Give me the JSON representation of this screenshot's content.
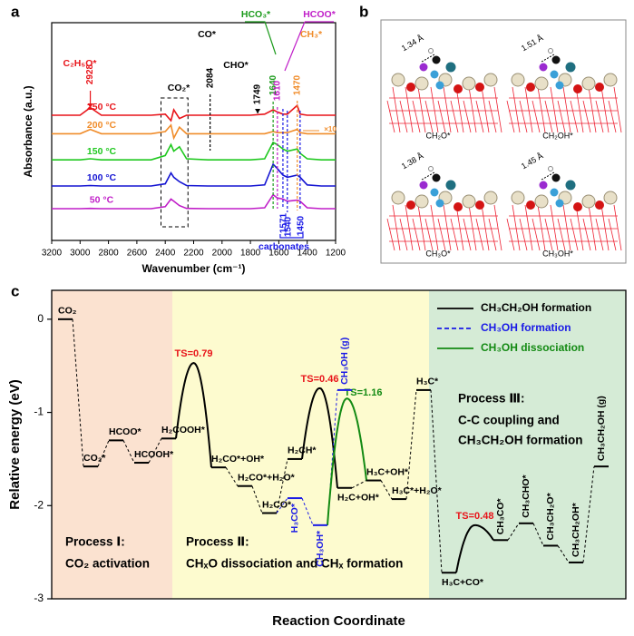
{
  "panel_labels": [
    "a",
    "b",
    "c"
  ],
  "chart_data": [
    {
      "type": "line",
      "x_label": "Wavenumber (cm⁻¹)",
      "y_label": "Absorbance (a.u.)",
      "xlim": [
        3200,
        1200
      ],
      "xticks": [
        3200,
        3000,
        2800,
        2600,
        2400,
        2200,
        2000,
        1800,
        1600,
        1400,
        1200
      ],
      "ylim": [
        0,
        10
      ],
      "x": [
        3200,
        3000,
        2928,
        2850,
        2500,
        2400,
        2360,
        2340,
        2300,
        2250,
        2100,
        2000,
        1800,
        1700,
        1640,
        1610,
        1571,
        1540,
        1470,
        1450,
        1400,
        1300,
        1200
      ],
      "series": [
        {
          "name": "250 °C",
          "color": "#e8141a",
          "values": [
            5.75,
            5.75,
            6.1,
            5.75,
            5.75,
            5.8,
            5.5,
            6.0,
            5.6,
            5.75,
            5.75,
            5.75,
            5.75,
            5.8,
            6.0,
            5.9,
            5.8,
            5.8,
            6.2,
            5.8,
            5.75,
            5.75,
            5.75
          ]
        },
        {
          "name": "200 °C",
          "color": "#f08c2a",
          "values": [
            4.9,
            4.9,
            5.1,
            4.9,
            4.9,
            5.0,
            5.3,
            4.7,
            5.2,
            4.9,
            4.9,
            4.9,
            4.9,
            4.9,
            5.0,
            4.95,
            4.95,
            4.95,
            5.1,
            4.95,
            4.9,
            4.9,
            4.9
          ]
        },
        {
          "name": "150 °C",
          "color": "#1ec81e",
          "values": [
            3.7,
            3.7,
            3.75,
            3.7,
            3.7,
            3.9,
            4.4,
            4.1,
            4.3,
            3.75,
            3.7,
            3.7,
            3.7,
            3.75,
            4.5,
            4.4,
            4.2,
            4.1,
            4.2,
            4.0,
            3.75,
            3.7,
            3.7
          ]
        },
        {
          "name": "100 °C",
          "color": "#1414d2",
          "values": [
            2.5,
            2.5,
            2.52,
            2.5,
            2.5,
            2.6,
            3.1,
            2.9,
            2.7,
            2.52,
            2.5,
            2.5,
            2.5,
            2.55,
            3.5,
            3.3,
            3.0,
            2.9,
            3.0,
            2.9,
            2.55,
            2.5,
            2.5
          ]
        },
        {
          "name": "50 °C",
          "color": "#c01ec8",
          "values": [
            1.46,
            1.46,
            1.47,
            1.46,
            1.46,
            1.55,
            1.9,
            1.8,
            1.6,
            1.47,
            1.46,
            1.46,
            1.46,
            1.5,
            2.1,
            1.95,
            1.9,
            1.8,
            1.85,
            1.8,
            1.5,
            1.46,
            1.46
          ]
        }
      ],
      "peaks": [
        2928,
        2084,
        1749,
        1640,
        1610,
        1470,
        1571,
        1540,
        1450
      ],
      "annotations": [
        "C₂H₅O*",
        "CO*",
        "CHO*",
        "HCO₃*",
        "HCOO*",
        "CH₃*",
        "CO₂*",
        "×10",
        "carbonates"
      ]
    },
    {
      "type": "energy_diagram",
      "y_label": "Relative energy (eV)",
      "x_label": "Reaction Coordinate",
      "ylim": [
        -3,
        0.31
      ],
      "yticks": [
        0,
        -1,
        -2,
        -3
      ],
      "ts_label_color": "#e8141a",
      "series": [
        {
          "name": "CH₃CH₂OH formation",
          "color": "#000000",
          "linestyle": "solid",
          "categories": [
            "CO₂",
            "CO₂*",
            "HCOO*",
            "HCOOH*",
            "H₂COOH*",
            "H₂CO*+OH*",
            "H₂CO*+H₂O*",
            "H₂CO*",
            "H₂CH*",
            "H₂C+OH*",
            "H₃C+OH*",
            "H₃C*+H₂O*",
            "H₃C*",
            "H₃C+CO*",
            "CH₃CO*",
            "CH₃CHO*",
            "CH₃CH₂O*",
            "CH₃CH₂OH*",
            "CH₃CH₂OH (g)"
          ],
          "values": [
            0,
            -1.58,
            -1.3,
            -1.54,
            -1.28,
            -1.59,
            -1.79,
            -2.08,
            -1.5,
            -1.81,
            -1.73,
            -1.93,
            -0.76,
            -2.72,
            -2.37,
            -2.19,
            -2.43,
            -2.61,
            -1.58
          ],
          "transition_states": [
            {
              "label": "TS=0.79",
              "value": -0.47
            },
            {
              "label": "TS=0.46",
              "value": -0.74
            },
            {
              "label": "TS=0.48",
              "value": -2.21
            }
          ]
        },
        {
          "name": "CH₃OH formation",
          "color": "#1a1ae6",
          "linestyle": "dashed",
          "categories": [
            "H₃CO*",
            "CH₃OH*",
            "CH₃OH (g)"
          ],
          "values": [
            -1.92,
            -2.21,
            -0.76
          ]
        },
        {
          "name": "CH₃OH dissociation",
          "color": "#138a13",
          "linestyle": "solid",
          "transition_states": [
            {
              "label": "TS=1.16",
              "value": -0.85
            }
          ]
        }
      ],
      "processes": [
        {
          "title": "Process Ⅰ:",
          "subtitle": [
            "CO₂ activation"
          ],
          "color": "#fbe2d0"
        },
        {
          "title": "Process Ⅱ:",
          "subtitle": [
            "CHₓO dissociation and CHₓ formation"
          ],
          "color": "#fdfbcf"
        },
        {
          "title": "Process Ⅲ:",
          "subtitle": [
            "C-C coupling and",
            "CH₃CH₂OH formation"
          ],
          "color": "#d5ebd6"
        }
      ]
    }
  ],
  "structures": [
    {
      "distance": "1.34 Å",
      "label": "CH₂O*"
    },
    {
      "distance": "1.51 Å",
      "label": "CH₂OH*"
    },
    {
      "distance": "1.38 Å",
      "label": "CH₃O*"
    },
    {
      "distance": "1.45 Å",
      "label": "CH₃OH*"
    }
  ]
}
